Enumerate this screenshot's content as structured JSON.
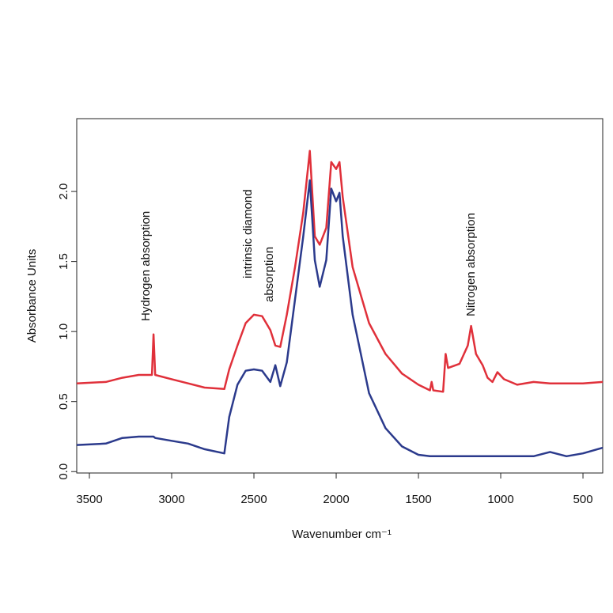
{
  "chart_data": {
    "type": "line",
    "xlabel": "Wavenumber cm⁻¹",
    "ylabel": "Absorbance Units",
    "annotations": [
      "Hydrogen absorption",
      "intrinsic diamond",
      "absorption",
      "Nitrogen absorption"
    ],
    "xlim": [
      3577,
      380
    ],
    "ylim": [
      -0.01,
      2.52
    ],
    "xticks": [
      3500,
      3000,
      2500,
      2000,
      1500,
      1000,
      500
    ],
    "yticks": [
      {
        "value": 0,
        "label": "0.0"
      },
      0.5,
      {
        "value": 1,
        "label": "1.0"
      },
      1.5,
      {
        "value": 2,
        "label": "2.0"
      }
    ],
    "x": [
      3577,
      3400,
      3300,
      3200,
      3120,
      3110,
      3100,
      3000,
      2900,
      2800,
      2680,
      2650,
      2600,
      2550,
      2500,
      2450,
      2400,
      2370,
      2340,
      2300,
      2250,
      2200,
      2160,
      2130,
      2100,
      2060,
      2030,
      2000,
      1980,
      1960,
      1900,
      1800,
      1700,
      1600,
      1500,
      1430,
      1420,
      1410,
      1350,
      1335,
      1320,
      1250,
      1200,
      1180,
      1150,
      1110,
      1080,
      1050,
      1020,
      980,
      900,
      800,
      700,
      600,
      500,
      380
    ],
    "series": [
      {
        "color": "#e0303a",
        "values": [
          0.63,
          0.64,
          0.67,
          0.69,
          0.69,
          0.98,
          0.69,
          0.66,
          0.63,
          0.6,
          0.59,
          0.73,
          0.9,
          1.06,
          1.12,
          1.11,
          1.01,
          0.9,
          0.89,
          1.12,
          1.46,
          1.85,
          2.29,
          1.68,
          1.62,
          1.74,
          2.21,
          2.16,
          2.21,
          1.96,
          1.46,
          1.06,
          0.84,
          0.7,
          0.62,
          0.58,
          0.64,
          0.58,
          0.57,
          0.84,
          0.74,
          0.77,
          0.9,
          1.04,
          0.84,
          0.76,
          0.67,
          0.64,
          0.71,
          0.66,
          0.62,
          0.64,
          0.63,
          0.63,
          0.63,
          0.64
        ]
      },
      {
        "color": "#2b3a8c",
        "values": [
          0.19,
          0.2,
          0.24,
          0.25,
          0.25,
          0.25,
          0.24,
          0.22,
          0.2,
          0.16,
          0.13,
          0.39,
          0.62,
          0.72,
          0.73,
          0.72,
          0.64,
          0.76,
          0.61,
          0.78,
          1.23,
          1.68,
          2.08,
          1.51,
          1.32,
          1.51,
          2.02,
          1.93,
          1.99,
          1.68,
          1.12,
          0.56,
          0.31,
          0.18,
          0.12,
          0.11,
          0.11,
          0.11,
          0.11,
          0.11,
          0.11,
          0.11,
          0.11,
          0.11,
          0.11,
          0.11,
          0.11,
          0.11,
          0.11,
          0.11,
          0.11,
          0.11,
          0.14,
          0.11,
          0.13,
          0.17
        ]
      }
    ]
  }
}
